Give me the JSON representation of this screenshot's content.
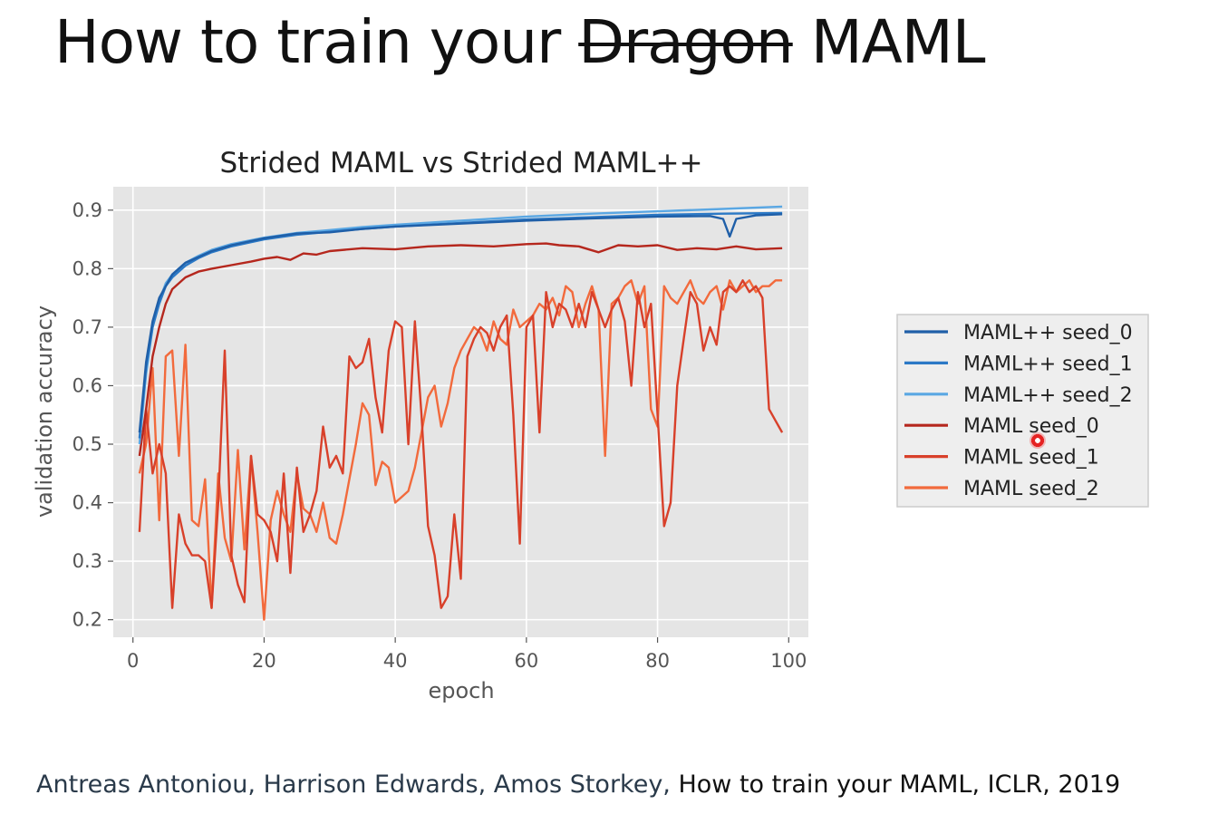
{
  "slide": {
    "title_prefix": "How to train your ",
    "title_struck": "Dragon",
    "title_suffix": " MAML",
    "citation_authors": "Antreas Antoniou, Harrison Edwards, Amos Storkey,",
    "citation_rest": " How to train your MAML, ICLR, 2019"
  },
  "chart_data": {
    "type": "line",
    "title": "Strided MAML vs Strided MAML++",
    "xlabel": "epoch",
    "ylabel": "validation accuracy",
    "xlim": [
      -3,
      103
    ],
    "ylim": [
      0.17,
      0.94
    ],
    "xticks": [
      0,
      20,
      40,
      60,
      80,
      100
    ],
    "yticks": [
      0.2,
      0.3,
      0.4,
      0.5,
      0.6,
      0.7,
      0.8,
      0.9
    ],
    "grid": true,
    "legend_position": "right",
    "series": [
      {
        "name": "MAML++ seed_0",
        "color": "#1f5fa8",
        "x": [
          1,
          2,
          3,
          4,
          5,
          6,
          8,
          10,
          12,
          15,
          20,
          25,
          30,
          35,
          40,
          50,
          60,
          70,
          80,
          88,
          90,
          91,
          92,
          95,
          99
        ],
        "y": [
          0.52,
          0.64,
          0.71,
          0.75,
          0.77,
          0.79,
          0.81,
          0.82,
          0.83,
          0.84,
          0.852,
          0.86,
          0.862,
          0.868,
          0.872,
          0.877,
          0.882,
          0.886,
          0.889,
          0.89,
          0.885,
          0.855,
          0.885,
          0.891,
          0.893
        ]
      },
      {
        "name": "MAML++ seed_1",
        "color": "#2b79c6",
        "x": [
          1,
          2,
          3,
          4,
          5,
          6,
          8,
          10,
          12,
          15,
          20,
          25,
          30,
          35,
          40,
          50,
          60,
          70,
          80,
          90,
          99
        ],
        "y": [
          0.51,
          0.63,
          0.7,
          0.74,
          0.77,
          0.785,
          0.805,
          0.818,
          0.828,
          0.838,
          0.85,
          0.858,
          0.863,
          0.868,
          0.872,
          0.878,
          0.884,
          0.888,
          0.892,
          0.894,
          0.895
        ]
      },
      {
        "name": "MAML++ seed_2",
        "color": "#5aa7e3",
        "x": [
          1,
          2,
          3,
          4,
          5,
          6,
          8,
          10,
          12,
          15,
          20,
          25,
          30,
          35,
          40,
          50,
          60,
          70,
          80,
          90,
          99
        ],
        "y": [
          0.5,
          0.62,
          0.7,
          0.745,
          0.775,
          0.79,
          0.81,
          0.822,
          0.832,
          0.842,
          0.853,
          0.861,
          0.866,
          0.871,
          0.875,
          0.882,
          0.889,
          0.894,
          0.898,
          0.902,
          0.906
        ]
      },
      {
        "name": "MAML seed_0",
        "color": "#b5271d",
        "x": [
          1,
          2,
          3,
          4,
          5,
          6,
          8,
          10,
          12,
          15,
          18,
          20,
          22,
          24,
          26,
          28,
          30,
          35,
          40,
          45,
          50,
          55,
          60,
          63,
          65,
          68,
          71,
          74,
          77,
          80,
          83,
          86,
          89,
          92,
          95,
          99
        ],
        "y": [
          0.48,
          0.56,
          0.65,
          0.7,
          0.74,
          0.765,
          0.785,
          0.795,
          0.8,
          0.806,
          0.812,
          0.817,
          0.82,
          0.815,
          0.826,
          0.824,
          0.83,
          0.835,
          0.833,
          0.838,
          0.84,
          0.838,
          0.842,
          0.843,
          0.84,
          0.838,
          0.828,
          0.84,
          0.838,
          0.84,
          0.832,
          0.835,
          0.833,
          0.838,
          0.833,
          0.835
        ]
      },
      {
        "name": "MAML seed_1",
        "color": "#d8402a",
        "x": [
          1,
          2,
          3,
          4,
          5,
          6,
          7,
          8,
          9,
          10,
          11,
          12,
          13,
          14,
          15,
          16,
          17,
          18,
          19,
          20,
          21,
          22,
          23,
          24,
          25,
          26,
          27,
          28,
          29,
          30,
          31,
          32,
          33,
          34,
          35,
          36,
          37,
          38,
          39,
          40,
          41,
          42,
          43,
          44,
          45,
          46,
          47,
          48,
          49,
          50,
          51,
          52,
          53,
          54,
          55,
          56,
          57,
          58,
          59,
          60,
          61,
          62,
          63,
          64,
          65,
          66,
          67,
          68,
          69,
          70,
          71,
          72,
          73,
          74,
          75,
          76,
          77,
          78,
          79,
          80,
          81,
          82,
          83,
          84,
          85,
          86,
          87,
          88,
          89,
          90,
          91,
          92,
          93,
          94,
          95,
          96,
          97,
          98,
          99
        ],
        "y": [
          0.35,
          0.56,
          0.45,
          0.5,
          0.45,
          0.22,
          0.38,
          0.33,
          0.31,
          0.31,
          0.3,
          0.22,
          0.4,
          0.66,
          0.31,
          0.26,
          0.23,
          0.48,
          0.38,
          0.37,
          0.35,
          0.3,
          0.45,
          0.28,
          0.46,
          0.35,
          0.38,
          0.42,
          0.53,
          0.46,
          0.48,
          0.45,
          0.65,
          0.63,
          0.64,
          0.68,
          0.58,
          0.52,
          0.66,
          0.71,
          0.7,
          0.5,
          0.71,
          0.55,
          0.36,
          0.31,
          0.22,
          0.24,
          0.38,
          0.27,
          0.65,
          0.68,
          0.7,
          0.69,
          0.66,
          0.7,
          0.72,
          0.55,
          0.33,
          0.7,
          0.72,
          0.52,
          0.76,
          0.7,
          0.74,
          0.73,
          0.7,
          0.74,
          0.7,
          0.76,
          0.73,
          0.7,
          0.73,
          0.75,
          0.71,
          0.6,
          0.76,
          0.7,
          0.74,
          0.55,
          0.36,
          0.4,
          0.6,
          0.68,
          0.76,
          0.74,
          0.66,
          0.7,
          0.67,
          0.76,
          0.77,
          0.76,
          0.78,
          0.76,
          0.77,
          0.75,
          0.56,
          0.54,
          0.52
        ]
      },
      {
        "name": "MAML seed_2",
        "color": "#f26a3c",
        "x": [
          1,
          2,
          3,
          4,
          5,
          6,
          7,
          8,
          9,
          10,
          11,
          12,
          13,
          14,
          15,
          16,
          17,
          18,
          19,
          20,
          21,
          22,
          23,
          24,
          25,
          26,
          27,
          28,
          29,
          30,
          31,
          32,
          33,
          34,
          35,
          36,
          37,
          38,
          39,
          40,
          41,
          42,
          43,
          44,
          45,
          46,
          47,
          48,
          49,
          50,
          51,
          52,
          53,
          54,
          55,
          56,
          57,
          58,
          59,
          60,
          61,
          62,
          63,
          64,
          65,
          66,
          67,
          68,
          69,
          70,
          71,
          72,
          73,
          74,
          75,
          76,
          77,
          78,
          79,
          80,
          81,
          82,
          83,
          84,
          85,
          86,
          87,
          88,
          89,
          90,
          91,
          92,
          93,
          94,
          95,
          96,
          97,
          98,
          99
        ],
        "y": [
          0.45,
          0.5,
          0.63,
          0.37,
          0.65,
          0.66,
          0.48,
          0.67,
          0.37,
          0.36,
          0.44,
          0.22,
          0.45,
          0.34,
          0.3,
          0.49,
          0.32,
          0.48,
          0.35,
          0.2,
          0.37,
          0.42,
          0.38,
          0.35,
          0.45,
          0.39,
          0.38,
          0.35,
          0.4,
          0.34,
          0.33,
          0.38,
          0.44,
          0.5,
          0.57,
          0.55,
          0.43,
          0.47,
          0.46,
          0.4,
          0.41,
          0.42,
          0.46,
          0.52,
          0.58,
          0.6,
          0.53,
          0.57,
          0.63,
          0.66,
          0.68,
          0.7,
          0.69,
          0.66,
          0.71,
          0.68,
          0.67,
          0.73,
          0.7,
          0.71,
          0.72,
          0.74,
          0.73,
          0.75,
          0.72,
          0.77,
          0.76,
          0.7,
          0.74,
          0.77,
          0.73,
          0.48,
          0.74,
          0.75,
          0.77,
          0.78,
          0.74,
          0.77,
          0.56,
          0.53,
          0.77,
          0.75,
          0.74,
          0.76,
          0.78,
          0.75,
          0.74,
          0.76,
          0.77,
          0.73,
          0.78,
          0.76,
          0.77,
          0.78,
          0.76,
          0.77,
          0.77,
          0.78,
          0.78
        ]
      }
    ]
  }
}
